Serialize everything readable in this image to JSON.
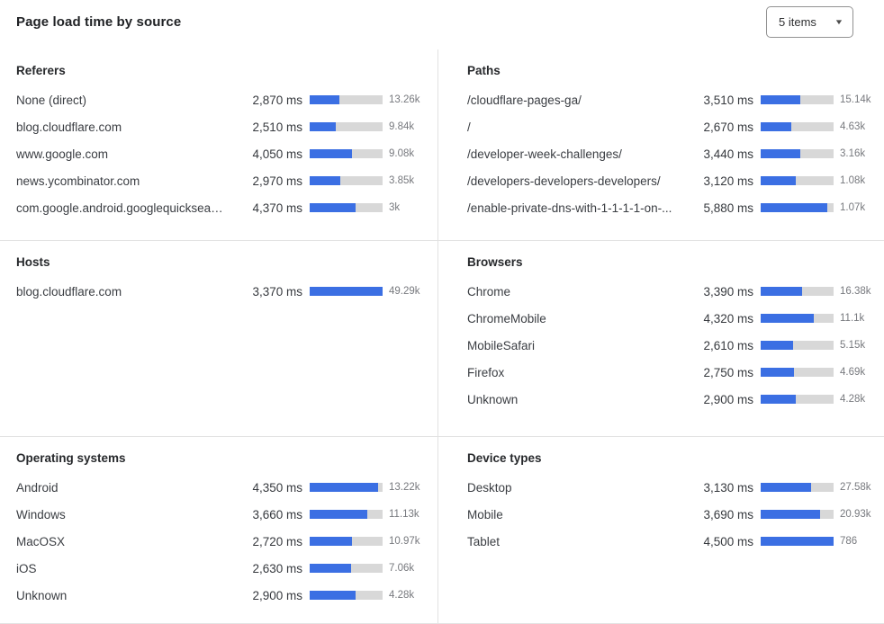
{
  "header": {
    "title": "Page load time by source",
    "items_dropdown": {
      "value": "5 items",
      "icon": "chevron-down",
      "caret_glyph": "▼"
    }
  },
  "colors": {
    "bar_fill": "#3b6fe3",
    "bar_track": "#d8d8d8",
    "divider": "#e2e2e2"
  },
  "chart_data": [
    {
      "type": "bar",
      "title": "Referers",
      "unit": "ms",
      "bar_scale_ms": 7000,
      "rows": [
        {
          "label": "None (direct)",
          "ms": 2870,
          "ms_label": "2,870 ms",
          "count": "13.26k"
        },
        {
          "label": "blog.cloudflare.com",
          "ms": 2510,
          "ms_label": "2,510 ms",
          "count": "9.84k"
        },
        {
          "label": "www.google.com",
          "ms": 4050,
          "ms_label": "4,050 ms",
          "count": "9.08k"
        },
        {
          "label": "news.ycombinator.com",
          "ms": 2970,
          "ms_label": "2,970 ms",
          "count": "3.85k"
        },
        {
          "label": "com.google.android.googlequicksearc...",
          "ms": 4370,
          "ms_label": "4,370 ms",
          "count": "3k"
        }
      ]
    },
    {
      "type": "bar",
      "title": "Paths",
      "unit": "ms",
      "bar_scale_ms": 6400,
      "rows": [
        {
          "label": "/cloudflare-pages-ga/",
          "ms": 3510,
          "ms_label": "3,510 ms",
          "count": "15.14k"
        },
        {
          "label": "/",
          "ms": 2670,
          "ms_label": "2,670 ms",
          "count": "4.63k"
        },
        {
          "label": "/developer-week-challenges/",
          "ms": 3440,
          "ms_label": "3,440 ms",
          "count": "3.16k"
        },
        {
          "label": "/developers-developers-developers/",
          "ms": 3120,
          "ms_label": "3,120 ms",
          "count": "1.08k"
        },
        {
          "label": "/enable-private-dns-with-1-1-1-1-on-...",
          "ms": 5880,
          "ms_label": "5,880 ms",
          "count": "1.07k"
        }
      ]
    },
    {
      "type": "bar",
      "title": "Hosts",
      "unit": "ms",
      "bar_scale_ms": 3370,
      "rows": [
        {
          "label": "blog.cloudflare.com",
          "ms": 3370,
          "ms_label": "3,370 ms",
          "count": "49.29k"
        }
      ]
    },
    {
      "type": "bar",
      "title": "Browsers",
      "unit": "ms",
      "bar_scale_ms": 5950,
      "rows": [
        {
          "label": "Chrome",
          "ms": 3390,
          "ms_label": "3,390 ms",
          "count": "16.38k"
        },
        {
          "label": "ChromeMobile",
          "ms": 4320,
          "ms_label": "4,320 ms",
          "count": "11.1k"
        },
        {
          "label": "MobileSafari",
          "ms": 2610,
          "ms_label": "2,610 ms",
          "count": "5.15k"
        },
        {
          "label": "Firefox",
          "ms": 2750,
          "ms_label": "2,750 ms",
          "count": "4.69k"
        },
        {
          "label": "Unknown",
          "ms": 2900,
          "ms_label": "2,900 ms",
          "count": "4.28k"
        }
      ]
    },
    {
      "type": "bar",
      "title": "Operating systems",
      "unit": "ms",
      "bar_scale_ms": 4640,
      "rows": [
        {
          "label": "Android",
          "ms": 4350,
          "ms_label": "4,350 ms",
          "count": "13.22k"
        },
        {
          "label": "Windows",
          "ms": 3660,
          "ms_label": "3,660 ms",
          "count": "11.13k"
        },
        {
          "label": "MacOSX",
          "ms": 2720,
          "ms_label": "2,720 ms",
          "count": "10.97k"
        },
        {
          "label": "iOS",
          "ms": 2630,
          "ms_label": "2,630 ms",
          "count": "7.06k"
        },
        {
          "label": "Unknown",
          "ms": 2900,
          "ms_label": "2,900 ms",
          "count": "4.28k"
        }
      ]
    },
    {
      "type": "bar",
      "title": "Device types",
      "unit": "ms",
      "bar_scale_ms": 4500,
      "rows": [
        {
          "label": "Desktop",
          "ms": 3130,
          "ms_label": "3,130 ms",
          "count": "27.58k"
        },
        {
          "label": "Mobile",
          "ms": 3690,
          "ms_label": "3,690 ms",
          "count": "20.93k"
        },
        {
          "label": "Tablet",
          "ms": 4500,
          "ms_label": "4,500 ms",
          "count": "786"
        }
      ]
    }
  ],
  "layout_hints": {
    "sections": [
      [
        0,
        1
      ],
      [
        2,
        3
      ],
      [
        4,
        5
      ]
    ],
    "grid": "off",
    "legend": "none",
    "bar_orientation": "horizontal"
  }
}
